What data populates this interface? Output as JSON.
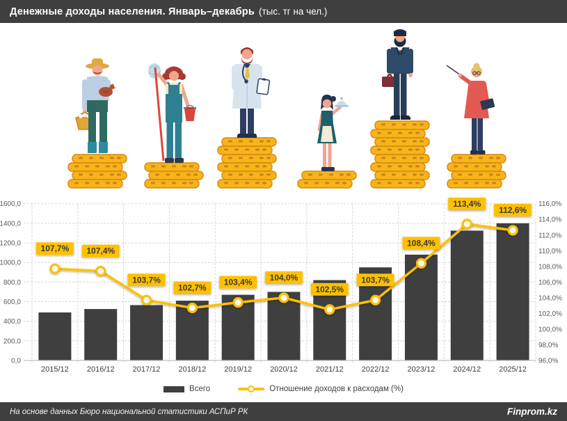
{
  "title": {
    "main": "Денежные доходы населения. Январь–декабрь",
    "units": "(тыс. тг на чел.)"
  },
  "legend": {
    "bar_label": "Всего",
    "line_label": "Отношение доходов к расходам (%)"
  },
  "footer": {
    "source": "На основе данных Бюро национальной статистики АСПиР РК",
    "brand": "Finprom.kz"
  },
  "colors": {
    "accent": "#FFC000",
    "dark": "#3F3F3F",
    "bar": "#3F3F3F",
    "label_bg": "#FFC000",
    "label_text": "#3A3A3A",
    "coin": "#F7B41B",
    "coin_edge": "#D8880B",
    "coin_slot": "#C9821B",
    "grid": "#D6D6D6",
    "axis_text": "#595959"
  },
  "illustration": {
    "figures": [
      {
        "name": "farmer",
        "coin_rows": 4
      },
      {
        "name": "cleaner",
        "coin_rows": 3
      },
      {
        "name": "doctor",
        "coin_rows": 6
      },
      {
        "name": "waitress",
        "coin_rows": 2
      },
      {
        "name": "businessman",
        "coin_rows": 8
      },
      {
        "name": "teacher",
        "coin_rows": 4
      }
    ]
  },
  "chart_data": {
    "type": "bar+line",
    "categories": [
      "2015/12",
      "2016/12",
      "2017/12",
      "2018/12",
      "2019/12",
      "2020/12",
      "2021/12",
      "2022/12",
      "2023/12",
      "2024/12",
      "2025/12"
    ],
    "series": [
      {
        "name": "Всего",
        "type": "bar",
        "axis": "left",
        "values": [
          490,
          525,
          565,
          610,
          670,
          700,
          820,
          950,
          1080,
          1325,
          1400
        ]
      },
      {
        "name": "Отношение доходов к расходам (%)",
        "type": "line",
        "axis": "right",
        "values": [
          107.7,
          107.4,
          103.7,
          102.7,
          103.4,
          104.0,
          102.5,
          103.7,
          108.4,
          113.4,
          112.6
        ],
        "point_labels": [
          "107,7%",
          "107,4%",
          "103,7%",
          "102,7%",
          "103,4%",
          "104,0%",
          "102,5%",
          "103,7%",
          "108,4%",
          "113,4%",
          "112,6%"
        ]
      }
    ],
    "left_axis": {
      "min": 0,
      "max": 1600,
      "step": 200,
      "tick_labels": [
        "0,0",
        "200,0",
        "400,0",
        "600,0",
        "800,0",
        "1000,0",
        "1200,0",
        "1400,0",
        "1600,0"
      ]
    },
    "right_axis": {
      "min": 96,
      "max": 116,
      "step": 2,
      "tick_labels": [
        "96,0%",
        "98,0%",
        "100,0%",
        "102,0%",
        "104,0%",
        "106,0%",
        "108,0%",
        "110,0%",
        "112,0%",
        "114,0%",
        "116,0%"
      ]
    },
    "grid": true,
    "legend_position": "bottom"
  }
}
